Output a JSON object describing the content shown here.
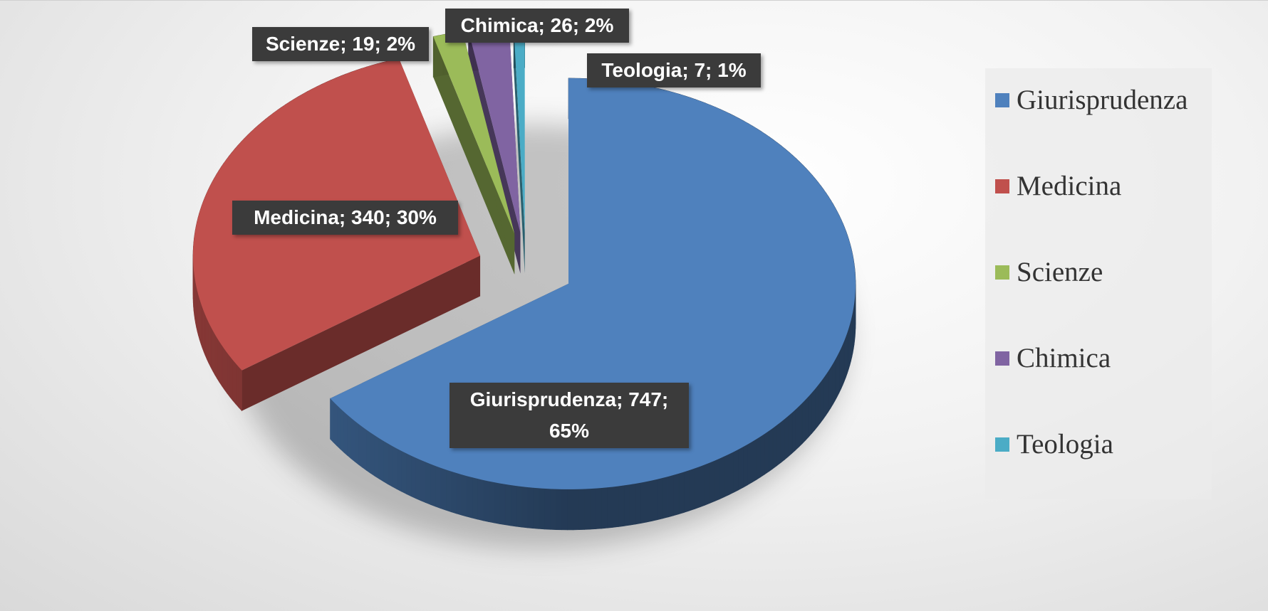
{
  "chart_data": {
    "type": "pie3d",
    "categories": [
      "Giurisprudenza",
      "Medicina",
      "Scienze",
      "Chimica",
      "Teologia"
    ],
    "values": [
      747,
      340,
      19,
      26,
      7
    ],
    "value_labels": [
      "Giurisprudenza; 747; 65%",
      "Medicina; 340; 30%",
      "Scienze; 19; 2%",
      "Chimica; 26; 2%",
      "Teologia; 7; 1%"
    ],
    "colors": [
      "#4f81bd",
      "#c0504d",
      "#9bbb59",
      "#8064a2",
      "#4bacc6"
    ],
    "legend": "right"
  }
}
